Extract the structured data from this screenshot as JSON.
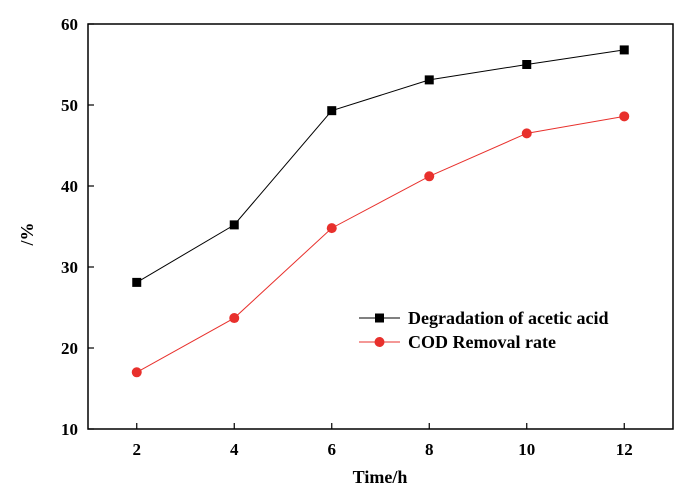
{
  "chart_data": {
    "type": "line",
    "xlabel": "Time/h",
    "ylabel": "/%",
    "xlim": [
      1,
      13
    ],
    "ylim": [
      10,
      60
    ],
    "xticks": [
      2,
      4,
      6,
      8,
      10,
      12
    ],
    "yticks": [
      10,
      20,
      30,
      40,
      50,
      60
    ],
    "grid": false,
    "legend_position": "center-right",
    "x": [
      2,
      4,
      6,
      8,
      10,
      12
    ],
    "series": [
      {
        "name": "Degradation of acetic acid",
        "values": [
          28.1,
          35.2,
          49.3,
          53.1,
          55.0,
          56.8
        ],
        "color": "#000000",
        "marker": "square"
      },
      {
        "name": "COD Removal rate",
        "values": [
          17.0,
          23.7,
          34.8,
          41.2,
          46.5,
          48.6
        ],
        "color": "#e8302c",
        "marker": "circle"
      }
    ]
  }
}
